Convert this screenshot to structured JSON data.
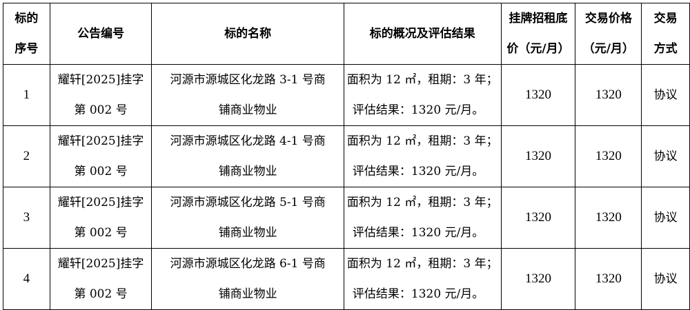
{
  "headers": [
    [
      "标的",
      "序号"
    ],
    [
      "公告编号"
    ],
    [
      "标的名称"
    ],
    [
      "标的概况及评估结果"
    ],
    [
      "挂牌招租底",
      "价（元/月）"
    ],
    [
      "交易价格",
      "（元/月）"
    ],
    [
      "交易",
      "方式"
    ]
  ],
  "rows": [
    {
      "index": "1",
      "notice": [
        "耀轩[2025]挂字",
        "第 002 号"
      ],
      "name": [
        "河源市源城区化龙路 3-1 号商",
        "铺商业物业"
      ],
      "summary": [
        "面积为 12 ㎡，租期：3 年；",
        "评估结果：1320 元/月。"
      ],
      "base_price": "1320",
      "deal_price": "1320",
      "method": "协议"
    },
    {
      "index": "2",
      "notice": [
        "耀轩[2025]挂字",
        "第 002 号"
      ],
      "name": [
        "河源市源城区化龙路 4-1 号商",
        "铺商业物业"
      ],
      "summary": [
        "面积为 12 ㎡，租期：3 年；",
        "评估结果：1320 元/月。"
      ],
      "base_price": "1320",
      "deal_price": "1320",
      "method": "协议"
    },
    {
      "index": "3",
      "notice": [
        "耀轩[2025]挂字",
        "第 002 号"
      ],
      "name": [
        "河源市源城区化龙路 5-1 号商",
        "铺商业物业"
      ],
      "summary": [
        "面积为 12 ㎡，租期：3 年；",
        "评估结果：1320 元/月。"
      ],
      "base_price": "1320",
      "deal_price": "1320",
      "method": "协议"
    },
    {
      "index": "4",
      "notice": [
        "耀轩[2025]挂字",
        "第 002 号"
      ],
      "name": [
        "河源市源城区化龙路 6-1 号商",
        "铺商业物业"
      ],
      "summary": [
        "面积为 12 ㎡，租期：3 年；",
        "评估结果：1320 元/月。"
      ],
      "base_price": "1320",
      "deal_price": "1320",
      "method": "协议"
    }
  ]
}
